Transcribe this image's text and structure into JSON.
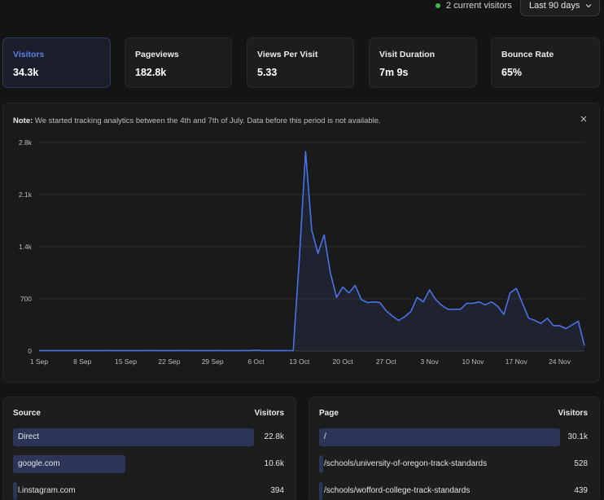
{
  "header": {
    "live_visitors": "2 current visitors",
    "range": "Last 90 days"
  },
  "stats": [
    {
      "label": "Visitors",
      "value": "34.3k"
    },
    {
      "label": "Pageviews",
      "value": "182.8k"
    },
    {
      "label": "Views Per Visit",
      "value": "5.33"
    },
    {
      "label": "Visit Duration",
      "value": "7m 9s"
    },
    {
      "label": "Bounce Rate",
      "value": "65%"
    }
  ],
  "note": {
    "prefix": "Note:",
    "text": " We started tracking analytics between the 4th and 7th of July. Data before this period is not available."
  },
  "chart_data": {
    "type": "area",
    "title": "",
    "xlabel": "",
    "ylabel": "Visitors",
    "ylim": [
      0,
      2800
    ],
    "yticks": [
      "0",
      "700",
      "1.4k",
      "2.1k",
      "2.8k"
    ],
    "xticks": [
      "1 Sep",
      "8 Sep",
      "15 Sep",
      "22 Sep",
      "29 Sep",
      "6 Oct",
      "13 Oct",
      "20 Oct",
      "27 Oct",
      "3 Nov",
      "10 Nov",
      "17 Nov",
      "24 Nov"
    ],
    "x_start": "1 Sep",
    "x_end": "30 Nov",
    "grid": true,
    "color": "#4a72e8",
    "series": [
      {
        "values": [
          5,
          5,
          5,
          6,
          5,
          5,
          6,
          5,
          6,
          5,
          6,
          7,
          6,
          5,
          6,
          6,
          5,
          6,
          7,
          6,
          6,
          5,
          6,
          7,
          6,
          6,
          5,
          6,
          6,
          7,
          6,
          5,
          6,
          7,
          6,
          10,
          6,
          6,
          5,
          4,
          6,
          5,
          1250,
          2680,
          1620,
          1310,
          1560,
          1050,
          720,
          860,
          780,
          880,
          690,
          650,
          660,
          650,
          540,
          470,
          410,
          460,
          530,
          720,
          660,
          820,
          690,
          610,
          560,
          560,
          560,
          640,
          640,
          660,
          620,
          660,
          600,
          490,
          780,
          840,
          640,
          440,
          410,
          370,
          440,
          340,
          340,
          300,
          350,
          400,
          70
        ]
      }
    ]
  },
  "sources": {
    "header": "Source",
    "count_header": "Visitors",
    "rows": [
      {
        "name": "Direct",
        "count": "22.8k",
        "value": 22800
      },
      {
        "name": "google.com",
        "count": "10.6k",
        "value": 10600
      },
      {
        "name": "l.instagram.com",
        "count": "394",
        "value": 394
      }
    ]
  },
  "pages": {
    "header": "Page",
    "count_header": "Visitors",
    "rows": [
      {
        "name": "/",
        "count": "30.1k",
        "value": 30100
      },
      {
        "name": "/schools/university-of-oregon-track-standards",
        "count": "528",
        "value": 528
      },
      {
        "name": "/schools/wofford-college-track-standards",
        "count": "439",
        "value": 439
      }
    ]
  }
}
